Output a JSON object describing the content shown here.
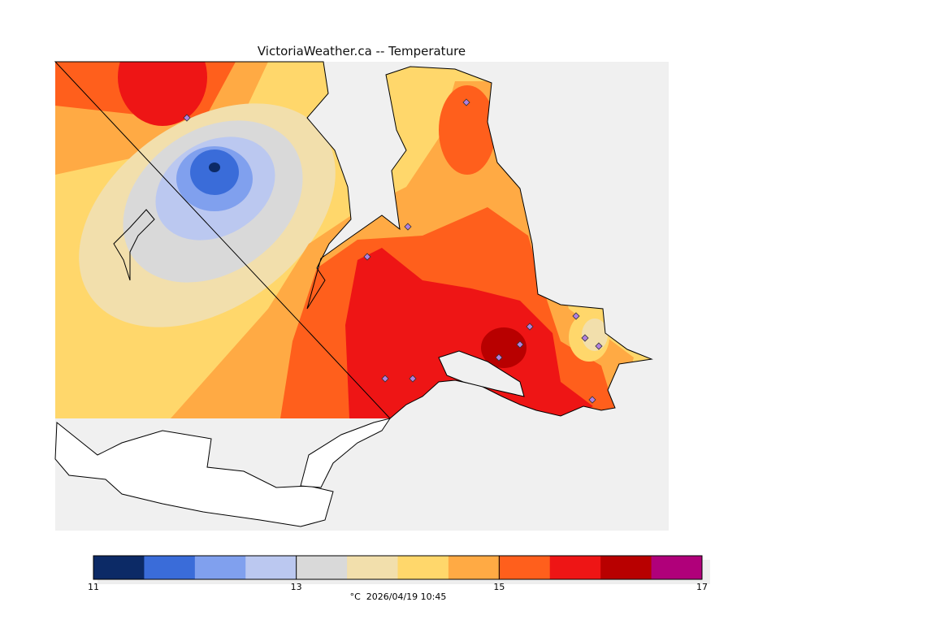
{
  "title": "VictoriaWeather.ca -- Temperature",
  "colorbar": {
    "unit_caption": "°C  2026/04/19 10:45",
    "min": 11,
    "max": 17,
    "step": 0.5,
    "tick_labels": [
      "11",
      "13",
      "15",
      "17"
    ],
    "tick_values": [
      11,
      13,
      15,
      17
    ],
    "colors": [
      "#0c2a66",
      "#3a6cd9",
      "#80a0ee",
      "#bbc8f0",
      "#d9d9d9",
      "#f2dfac",
      "#ffd76b",
      "#ffaa44",
      "#ff5f1c",
      "#ee1515",
      "#b80000",
      "#b0007a"
    ]
  },
  "colors": {
    "water": "#f0f0f0",
    "land_nodata": "#ffffff",
    "station": "#9a5fd0"
  }
}
